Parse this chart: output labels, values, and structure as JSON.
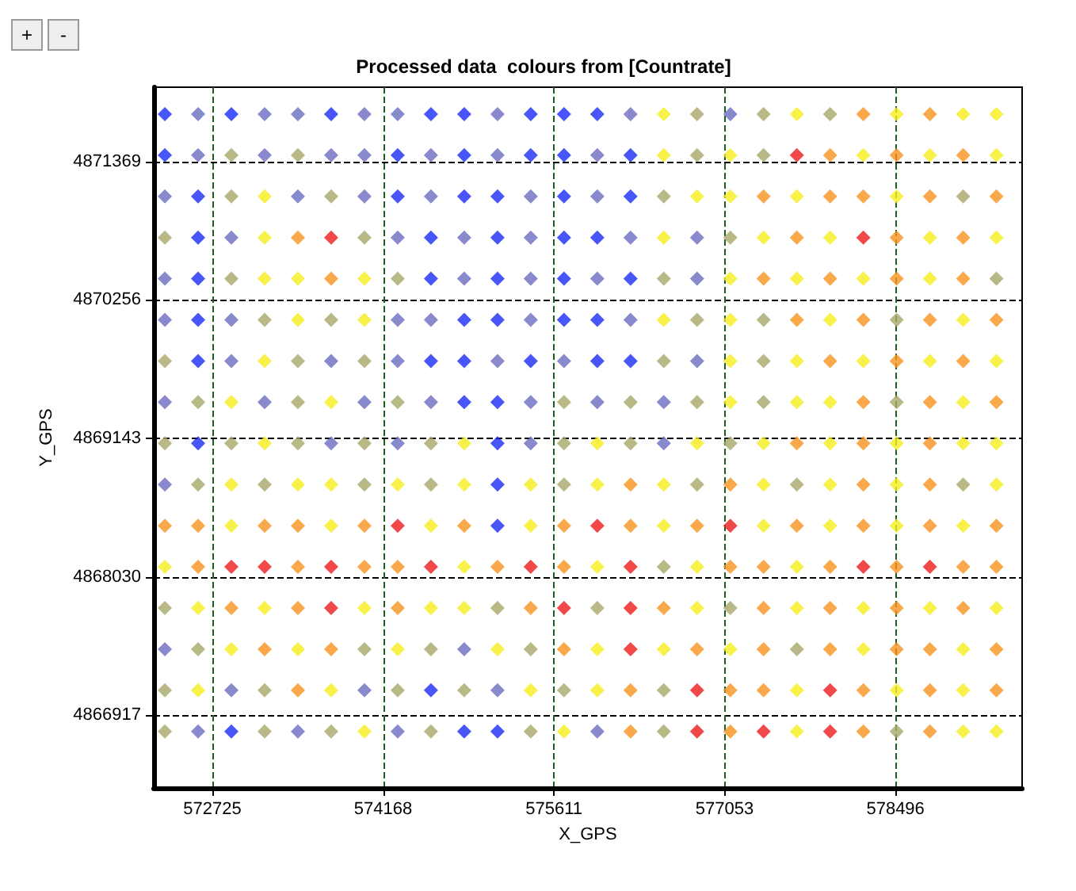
{
  "chart_data": {
    "type": "scatter",
    "title": "Processed data  colours from [Countrate]",
    "xlabel": "X_GPS",
    "ylabel": "Y_GPS",
    "annotations": [
      "+",
      "-"
    ],
    "marker": "diamond",
    "grid": true,
    "xlim": [
      572230,
      579566
    ],
    "xticks": [
      572725,
      574168,
      575611,
      577053,
      578496
    ],
    "ylim": [
      4866332,
      4871967
    ],
    "yticks": [
      4866917,
      4868030,
      4869143,
      4870256,
      4871369
    ],
    "series": [
      {
        "color": "#1a2af5",
        "x": [
          572324,
          572886,
          573729,
          574572,
          574853,
          575415,
          575696,
          575977,
          572324,
          574291,
          574853,
          575415,
          575696,
          576258,
          572605,
          574291,
          574853,
          575134,
          575696,
          576258,
          572605,
          574572,
          575134,
          575696,
          575977,
          572605,
          574572,
          575134,
          575696,
          576258,
          572605,
          574853,
          575134,
          575696,
          575977,
          572605,
          574572,
          574853,
          575415,
          575977,
          576258,
          574853,
          575134,
          572605,
          575134,
          575134,
          575134,
          574572,
          572886,
          574853,
          575134
        ],
        "values": [
          4871751,
          4871751,
          4871751,
          4871751,
          4871751,
          4871751,
          4871751,
          4871751,
          4871420,
          4871420,
          4871420,
          4871420,
          4871420,
          4871420,
          4871089,
          4871089,
          4871089,
          4871089,
          4871089,
          4871089,
          4870758,
          4870758,
          4870758,
          4870758,
          4870758,
          4870427,
          4870427,
          4870427,
          4870427,
          4870427,
          4870096,
          4870096,
          4870096,
          4870096,
          4870096,
          4869765,
          4869765,
          4869765,
          4869765,
          4869765,
          4869765,
          4869434,
          4869434,
          4869103,
          4869103,
          4868772,
          4868441,
          4867117,
          4866786,
          4866786,
          4866786
        ]
      },
      {
        "color": "#6b6bc0",
        "x": [
          572605,
          573167,
          573448,
          574010,
          574291,
          575134,
          576258,
          577101,
          572605,
          573167,
          573729,
          574010,
          574572,
          575134,
          575977,
          572324,
          573448,
          574010,
          574572,
          575415,
          575977,
          572886,
          574291,
          574853,
          575415,
          576258,
          576820,
          572324,
          574853,
          575415,
          575977,
          576820,
          572324,
          572886,
          574291,
          574572,
          575415,
          576258,
          572886,
          573729,
          574291,
          575134,
          575696,
          576820,
          572324,
          573167,
          574010,
          574572,
          575415,
          575977,
          576539,
          573729,
          574291,
          575415,
          576539,
          572324,
          572324,
          574853,
          572886,
          574010,
          575134,
          572605,
          573448,
          574291,
          575977
        ],
        "values": [
          4871751,
          4871751,
          4871751,
          4871751,
          4871751,
          4871751,
          4871751,
          4871751,
          4871420,
          4871420,
          4871420,
          4871420,
          4871420,
          4871420,
          4871420,
          4871089,
          4871089,
          4871089,
          4871089,
          4871089,
          4871089,
          4870758,
          4870758,
          4870758,
          4870758,
          4870758,
          4870758,
          4870427,
          4870427,
          4870427,
          4870427,
          4870427,
          4870096,
          4870096,
          4870096,
          4870096,
          4870096,
          4870096,
          4869765,
          4869765,
          4869765,
          4869765,
          4869765,
          4869765,
          4869434,
          4869434,
          4869434,
          4869434,
          4869434,
          4869434,
          4869434,
          4869103,
          4869103,
          4869103,
          4869103,
          4868772,
          4867448,
          4867448,
          4867117,
          4867117,
          4867117,
          4866786,
          4866786,
          4866786,
          4866786
        ]
      },
      {
        "color": "#a8a86a",
        "x": [
          576820,
          577382,
          577944,
          572886,
          573448,
          576820,
          577382,
          572886,
          573729,
          576539,
          579068,
          572324,
          574010,
          577101,
          572886,
          574291,
          576539,
          579349,
          573167,
          573729,
          576820,
          577382,
          578506,
          572324,
          573448,
          574010,
          576539,
          577382,
          572605,
          573448,
          574291,
          575696,
          576258,
          576820,
          577382,
          578506,
          572324,
          572886,
          573448,
          574010,
          574572,
          575696,
          576258,
          577101,
          572605,
          573167,
          574010,
          574572,
          575696,
          576820,
          577663,
          579068,
          576539,
          572324,
          575134,
          575977,
          577101,
          572605,
          574010,
          574572,
          575415,
          577663,
          572324,
          573167,
          574291,
          574853,
          575696,
          576539,
          572324,
          573167,
          573729,
          574572,
          575415,
          576539,
          578506
        ],
        "values": [
          4871751,
          4871751,
          4871751,
          4871420,
          4871420,
          4871420,
          4871420,
          4871089,
          4871089,
          4871089,
          4871089,
          4870758,
          4870758,
          4870758,
          4870427,
          4870427,
          4870427,
          4870427,
          4870096,
          4870096,
          4870096,
          4870096,
          4870096,
          4869765,
          4869765,
          4869765,
          4869765,
          4869765,
          4869434,
          4869434,
          4869434,
          4869434,
          4869434,
          4869434,
          4869434,
          4869434,
          4869103,
          4869103,
          4869103,
          4869103,
          4869103,
          4869103,
          4869103,
          4869103,
          4868772,
          4868772,
          4868772,
          4868772,
          4868772,
          4868772,
          4868772,
          4868772,
          4868110,
          4867779,
          4867779,
          4867779,
          4867779,
          4867448,
          4867448,
          4867448,
          4867448,
          4867448,
          4867117,
          4867117,
          4867117,
          4867117,
          4867117,
          4867117,
          4866786,
          4866786,
          4866786,
          4866786,
          4866786,
          4866786,
          4866786
        ]
      },
      {
        "color": "#f5ee1c",
        "x": [
          576539,
          577663,
          578506,
          579068,
          579349,
          576539,
          577101,
          578225,
          578787,
          579349,
          573167,
          576820,
          577101,
          577663,
          578506,
          573167,
          576539,
          577382,
          577944,
          578787,
          579349,
          573167,
          573448,
          574010,
          577101,
          577663,
          578225,
          578787,
          573448,
          574010,
          576539,
          577101,
          577944,
          579068,
          573167,
          577101,
          577663,
          578225,
          578787,
          579349,
          572886,
          573729,
          577101,
          577663,
          577944,
          579068,
          573167,
          574853,
          575977,
          576820,
          577382,
          577944,
          578506,
          579068,
          579349,
          572886,
          573448,
          573729,
          574291,
          574853,
          575415,
          575977,
          576539,
          577382,
          577944,
          578506,
          579349,
          572886,
          573729,
          574572,
          575415,
          576539,
          577382,
          577944,
          578506,
          579068,
          572324,
          574853,
          575977,
          576820,
          577663,
          572605,
          573167,
          574010,
          574572,
          574853,
          576820,
          577663,
          578225,
          578787,
          579349,
          572886,
          573448,
          574291,
          575134,
          575977,
          576539,
          577101,
          578225,
          579068,
          572605,
          573729,
          575415,
          575977,
          577663,
          578506,
          579068,
          574010,
          575696,
          577663,
          579068,
          579349
        ],
        "values": [
          4871751,
          4871751,
          4871751,
          4871751,
          4871751,
          4871420,
          4871420,
          4871420,
          4871420,
          4871420,
          4871089,
          4871089,
          4871089,
          4871089,
          4871089,
          4870758,
          4870758,
          4870758,
          4870758,
          4870758,
          4870758,
          4870427,
          4870427,
          4870427,
          4870427,
          4870427,
          4870427,
          4870427,
          4870096,
          4870096,
          4870096,
          4870096,
          4870096,
          4870096,
          4869765,
          4869765,
          4869765,
          4869765,
          4869765,
          4869765,
          4869434,
          4869434,
          4869434,
          4869434,
          4869434,
          4869434,
          4869103,
          4869103,
          4869103,
          4869103,
          4869103,
          4869103,
          4869103,
          4869103,
          4869103,
          4868772,
          4868772,
          4868772,
          4868772,
          4868772,
          4868772,
          4868772,
          4868772,
          4868772,
          4868772,
          4868772,
          4868772,
          4868441,
          4868441,
          4868441,
          4868441,
          4868441,
          4868441,
          4868441,
          4868441,
          4868441,
          4868110,
          4868110,
          4868110,
          4868110,
          4868110,
          4867779,
          4867779,
          4867779,
          4867779,
          4867779,
          4867779,
          4867779,
          4867779,
          4867779,
          4867779,
          4867448,
          4867448,
          4867448,
          4867448,
          4867448,
          4867448,
          4867448,
          4867448,
          4867448,
          4867117,
          4867117,
          4867117,
          4867117,
          4867117,
          4867117,
          4867117,
          4866786,
          4866786,
          4866786,
          4866786,
          4866786
        ]
      },
      {
        "color": "#f7931e",
        "x": [
          578225,
          578787,
          577944,
          578506,
          579068,
          577382,
          577944,
          578225,
          578787,
          579349,
          573448,
          577663,
          578506,
          579068,
          573729,
          577382,
          577944,
          578506,
          579068,
          577663,
          578225,
          578787,
          579349,
          577944,
          578506,
          579068,
          578225,
          578787,
          579349,
          577663,
          578225,
          578787,
          576258,
          577101,
          578225,
          578787,
          572324,
          572605,
          573167,
          573448,
          574010,
          574853,
          575696,
          576258,
          576820,
          577663,
          578225,
          578787,
          579349,
          572605,
          573448,
          574010,
          574291,
          575134,
          575696,
          577101,
          577382,
          577944,
          578506,
          579068,
          579349,
          572886,
          573448,
          574291,
          575415,
          576539,
          577382,
          577944,
          578506,
          579068,
          573167,
          573729,
          575696,
          576820,
          577382,
          577944,
          578506,
          578787,
          579349,
          573448,
          576258,
          577101,
          577382,
          578225,
          578787,
          579349,
          576258,
          577101,
          578225,
          578787
        ],
        "values": [
          4871751,
          4871751,
          4871420,
          4871420,
          4871420,
          4871089,
          4871089,
          4871089,
          4871089,
          4871089,
          4870758,
          4870758,
          4870758,
          4870758,
          4870427,
          4870427,
          4870427,
          4870427,
          4870427,
          4870096,
          4870096,
          4870096,
          4870096,
          4869765,
          4869765,
          4869765,
          4869434,
          4869434,
          4869434,
          4869103,
          4869103,
          4869103,
          4868772,
          4868772,
          4868772,
          4868772,
          4868441,
          4868441,
          4868441,
          4868441,
          4868441,
          4868441,
          4868441,
          4868441,
          4868441,
          4868441,
          4868441,
          4868441,
          4868441,
          4868110,
          4868110,
          4868110,
          4868110,
          4868110,
          4868110,
          4868110,
          4868110,
          4868110,
          4868110,
          4868110,
          4868110,
          4867779,
          4867779,
          4867779,
          4867779,
          4867779,
          4867779,
          4867779,
          4867779,
          4867779,
          4867448,
          4867448,
          4867448,
          4867448,
          4867448,
          4867448,
          4867448,
          4867448,
          4867448,
          4867117,
          4867117,
          4867117,
          4867117,
          4867117,
          4867117,
          4867117,
          4866786,
          4866786,
          4866786,
          4866786
        ]
      },
      {
        "color": "#ee1c1c",
        "x": [
          577663,
          573729,
          578225,
          574291,
          575977,
          577101,
          572886,
          573167,
          573729,
          574572,
          575415,
          576258,
          578225,
          578787,
          573729,
          575696,
          576258,
          576258,
          576820,
          577944,
          576820,
          577382,
          577944
        ],
        "values": [
          4871420,
          4870758,
          4870758,
          4868441,
          4868441,
          4868441,
          4868110,
          4868110,
          4868110,
          4868110,
          4868110,
          4868110,
          4868110,
          4868110,
          4867779,
          4867779,
          4867779,
          4867448,
          4867117,
          4867117,
          4866786,
          4866786,
          4866786
        ]
      }
    ]
  }
}
